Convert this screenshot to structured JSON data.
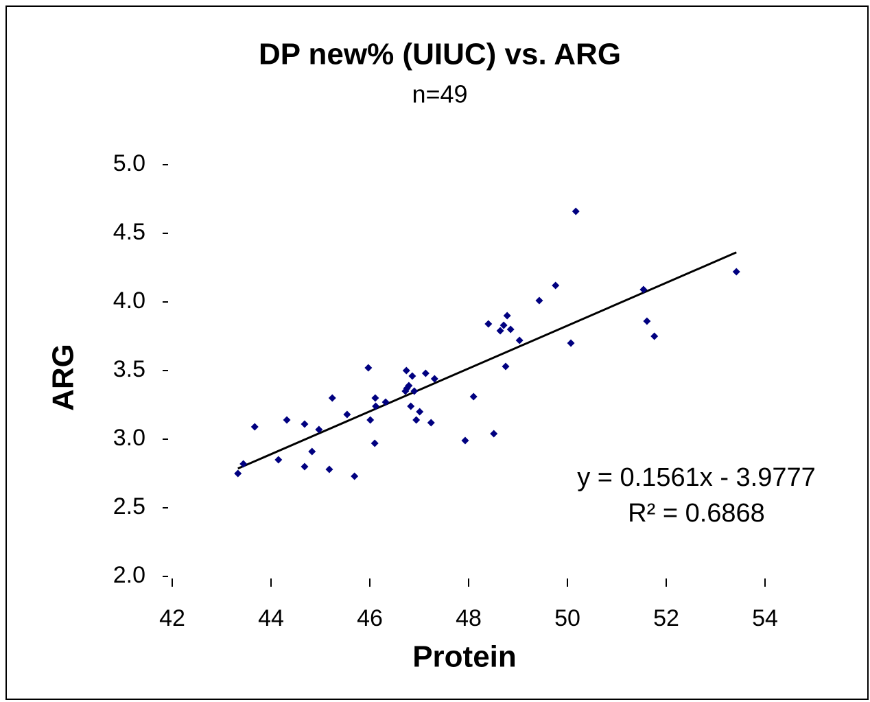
{
  "chart_data": {
    "type": "scatter",
    "title": "DP new% (UIUC) vs. ARG",
    "subtitle": "n=49",
    "x_label": "Protein",
    "y_label": "ARG",
    "xlim": [
      42,
      56
    ],
    "ylim": [
      2,
      5
    ],
    "xticks": [
      42,
      44,
      46,
      48,
      50,
      52,
      54
    ],
    "yticks": [
      {
        "value": 2,
        "label": "2.0"
      },
      {
        "value": 2.5,
        "label": "2.5"
      },
      {
        "value": 3,
        "label": "3.0"
      },
      {
        "value": 3.5,
        "label": "3.5"
      },
      {
        "value": 4,
        "label": "4.0"
      },
      {
        "value": 4.5,
        "label": "4.5"
      },
      {
        "value": 5,
        "label": "5.0"
      }
    ],
    "series": [
      {
        "name": "ARG",
        "color": "#000080",
        "x": [
          43.33,
          43.44,
          43.67,
          44.15,
          44.32,
          44.68,
          44.68,
          44.83,
          44.97,
          45.18,
          45.24,
          45.54,
          45.69,
          45.97,
          46.01,
          46.1,
          46.11,
          46.12,
          46.32,
          46.74,
          46.72,
          46.79,
          46.86,
          46.83,
          46.9,
          46.94,
          47.01,
          47.13,
          47.24,
          47.31,
          47.93,
          48.1,
          48.4,
          48.51,
          48.64,
          48.71,
          48.78,
          48.75,
          48.85,
          49.03,
          49.43,
          49.76,
          50.07,
          50.17,
          51.54,
          51.61,
          51.76,
          53.42,
          46.75
        ],
        "values": [
          2.75,
          2.82,
          3.09,
          2.85,
          3.14,
          3.11,
          2.8,
          2.91,
          3.07,
          2.78,
          3.3,
          3.18,
          2.73,
          3.52,
          3.14,
          2.97,
          3.3,
          3.24,
          3.27,
          3.5,
          3.35,
          3.39,
          3.46,
          3.24,
          3.35,
          3.14,
          3.2,
          3.48,
          3.12,
          3.44,
          2.99,
          3.31,
          3.84,
          3.04,
          3.79,
          3.83,
          3.9,
          3.53,
          3.8,
          3.72,
          4.01,
          4.12,
          3.7,
          4.66,
          4.09,
          3.86,
          3.75,
          4.22,
          3.37
        ]
      }
    ],
    "trendline": {
      "slope": 0.1561,
      "intercept": -3.9777,
      "color": "#000000",
      "equation": "y = 0.1561x - 3.9777",
      "r_squared": "R² = 0.6868"
    }
  }
}
